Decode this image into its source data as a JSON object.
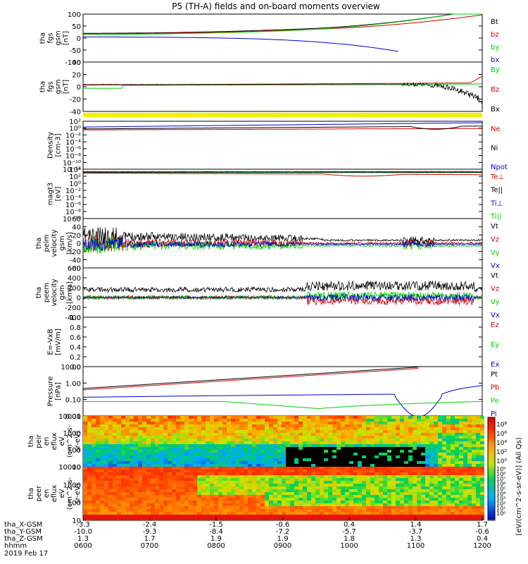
{
  "title": "P5 (TH-A) fields and on-board moments overview",
  "colors": {
    "black": "#000000",
    "red": "#d00000",
    "green": "#00d000",
    "blue": "#0000d0",
    "yellow": "#f0f000"
  },
  "chart_data": [
    {
      "type": "line",
      "name": "fgs_gsm",
      "ylabel": [
        "tha",
        "fgs",
        "gsm",
        "[nT]"
      ],
      "ylim": [
        -100,
        100
      ],
      "yticks": [
        "100",
        "50",
        "0",
        "-50",
        "-100"
      ],
      "legend": [
        {
          "label": "Bt",
          "color": "#000000"
        },
        {
          "label": "bz",
          "color": "#d00000"
        },
        {
          "label": "by",
          "color": "#00d000"
        },
        {
          "label": "bx",
          "color": "#0000d0"
        }
      ]
    },
    {
      "type": "line",
      "name": "fgs_gsm_zoom",
      "ylabel": [
        "tha",
        "fgs",
        "gsm",
        "[nT]"
      ],
      "ylim": [
        -50,
        40
      ],
      "yticks": [
        "40",
        "20",
        "0",
        "-20",
        "-40"
      ],
      "legend": [
        {
          "label": "By",
          "color": "#00d000"
        },
        {
          "label": "Bz",
          "color": "#d00000"
        },
        {
          "label": "Bx",
          "color": "#000000"
        }
      ]
    },
    {
      "type": "line",
      "name": "density",
      "ylabel": [
        "Density",
        "[cm-3]"
      ],
      "log": true,
      "yticks": [
        "10²",
        "10⁰",
        "10⁻²",
        "10⁻⁴",
        "10⁻⁶",
        "10⁻⁸",
        "10⁻¹⁰",
        "10⁻¹²"
      ],
      "legend": [
        {
          "label": "Ne",
          "color": "#d00000"
        },
        {
          "label": "Ni",
          "color": "#000000"
        },
        {
          "label": "Npot",
          "color": "#0000d0"
        }
      ]
    },
    {
      "type": "line",
      "name": "temperature",
      "ylabel": [
        "magt3",
        "[eV]"
      ],
      "log": true,
      "yticks": [
        "10⁴",
        "10²",
        "10⁰",
        "10⁻²",
        "10⁻⁴",
        "10⁻⁶",
        "10⁻⁸",
        "10⁻¹⁰"
      ],
      "legend": [
        {
          "label": "Te⊥",
          "color": "#d00000"
        },
        {
          "label": "Te||",
          "color": "#000000"
        },
        {
          "label": "Ti⊥",
          "color": "#0000d0"
        },
        {
          "label": "Ti||",
          "color": "#00d000"
        }
      ]
    },
    {
      "type": "line",
      "name": "peim_velocity",
      "ylabel": [
        "tha",
        "peim",
        "velocity",
        "gsm",
        "[km/s]"
      ],
      "ylim": [
        -60,
        60
      ],
      "yticks": [
        "60",
        "40",
        "20",
        "0",
        "-20",
        "-40",
        "-60"
      ],
      "legend": [
        {
          "label": "Vt",
          "color": "#000000"
        },
        {
          "label": "Vz",
          "color": "#d00000"
        },
        {
          "label": "Vy",
          "color": "#00d000"
        },
        {
          "label": "Vx",
          "color": "#0000d0"
        }
      ]
    },
    {
      "type": "line",
      "name": "peem_velocity",
      "ylabel": [
        "tha",
        "peem",
        "velocity",
        "gsm",
        "[km/s]"
      ],
      "ylim": [
        -400,
        600
      ],
      "yticks": [
        "600",
        "400",
        "200",
        "0",
        "-200",
        "-400"
      ],
      "legend": [
        {
          "label": "Vt",
          "color": "#000000"
        },
        {
          "label": "Vz",
          "color": "#d00000"
        },
        {
          "label": "Vy",
          "color": "#00d000"
        },
        {
          "label": "Vx",
          "color": "#0000d0"
        }
      ]
    },
    {
      "type": "line",
      "name": "efield",
      "ylabel": [
        "E=-VxB",
        "[mV/m]"
      ],
      "ylim": [
        0,
        1
      ],
      "yticks": [
        "1.0",
        "0.8",
        "0.6",
        "0.4",
        "0.2",
        "0.0"
      ],
      "legend": [
        {
          "label": "Ez",
          "color": "#d00000"
        },
        {
          "label": "Ey",
          "color": "#00d000"
        },
        {
          "label": "Ex",
          "color": "#0000d0"
        }
      ]
    },
    {
      "type": "line",
      "name": "pressure",
      "ylabel": [
        "Pressure",
        "[nPa]"
      ],
      "log": true,
      "yticks": [
        "10.00",
        "1.00",
        "0.10",
        "0.01"
      ],
      "legend": [
        {
          "label": "Pt",
          "color": "#000000"
        },
        {
          "label": "Pb",
          "color": "#d00000"
        },
        {
          "label": "Pe",
          "color": "#00d000"
        },
        {
          "label": "Pi",
          "color": "#0000d0"
        }
      ]
    },
    {
      "type": "heatmap",
      "name": "peir_en_eflux",
      "ylabel": [
        "tha",
        "peir",
        "en",
        "eflux",
        "eV",
        "(cm^2-s-",
        "sr-eV)"
      ],
      "yticks": [
        "10000",
        "1000",
        "100",
        "10"
      ],
      "colorbar_ticks": [
        "10⁸",
        "10⁶",
        "10⁴",
        "10²",
        "10⁰"
      ]
    },
    {
      "type": "heatmap",
      "name": "peer_en_eflux",
      "ylabel": [
        "tha",
        "peer",
        "en",
        "eflux",
        "eV",
        "(cm^2-s-",
        "sr-eV)"
      ],
      "yticks": [
        "10000",
        "1000",
        "100",
        "10"
      ],
      "colorbar_ticks": [
        "10⁹",
        "10⁸",
        "10⁷",
        "10⁶",
        "10⁵",
        "10⁴",
        "10³",
        "10²",
        "10¹",
        "10⁰"
      ]
    }
  ],
  "colorbar_label": "[eV/(cm^2-s-sr-eV)] (All Qs)",
  "xaxis": {
    "rows": [
      {
        "label": "tha_X-GSM",
        "values": [
          "-3.3",
          "-2.4",
          "-1.5",
          "-0.6",
          "0.4",
          "1.4",
          "1.7"
        ]
      },
      {
        "label": "tha_Y-GSM",
        "values": [
          "-10.0",
          "-9.3",
          "-8.4",
          "-7.2",
          "-5.7",
          "-3.7",
          "-0.6"
        ]
      },
      {
        "label": "tha_Z-GSM",
        "values": [
          "1.3",
          "1.7",
          "1.9",
          "1.9",
          "1.8",
          "1.3",
          "0.4"
        ]
      },
      {
        "label": "hhmm",
        "values": [
          "0600",
          "0700",
          "0800",
          "0900",
          "1000",
          "1100",
          "1200"
        ]
      }
    ],
    "date": "2019 Feb 17"
  }
}
